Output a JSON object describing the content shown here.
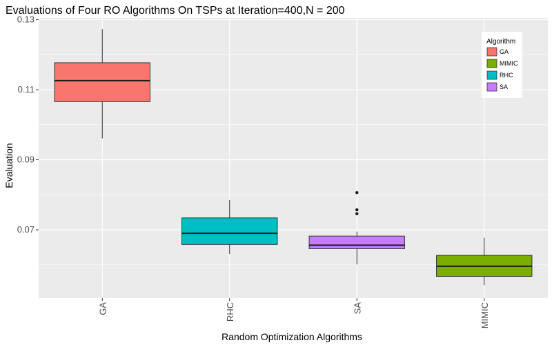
{
  "chart_data": {
    "type": "boxplot",
    "title": "Evaluations of Four RO Algorithms On TSPs at Iteration=400,N = 200",
    "xlabel": "Random Optimization Algorithms",
    "ylabel": "Evaluation",
    "ylim": [
      0.0505,
      0.1305
    ],
    "y_ticks": [
      "0.07",
      "0.09",
      "0.11",
      "0.13"
    ],
    "y_tick_values": [
      0.07,
      0.09,
      0.11,
      0.13
    ],
    "categories": [
      "GA",
      "RHC",
      "SA",
      "MIMIC"
    ],
    "boxes": [
      {
        "name": "GA",
        "min": 0.0961,
        "q1": 0.1066,
        "median": 0.1126,
        "q3": 0.1177,
        "max": 0.1273,
        "outliers": [],
        "color": "#F8766D"
      },
      {
        "name": "RHC",
        "min": 0.0631,
        "q1": 0.0658,
        "median": 0.069,
        "q3": 0.0734,
        "max": 0.0785,
        "outliers": [],
        "color": "#00BFC4"
      },
      {
        "name": "SA",
        "min": 0.0601,
        "q1": 0.0646,
        "median": 0.0656,
        "q3": 0.0682,
        "max": 0.0695,
        "outliers": [
          0.0746,
          0.0757,
          0.0806
        ],
        "color": "#C77CFF"
      },
      {
        "name": "MIMIC",
        "min": 0.0542,
        "q1": 0.0567,
        "median": 0.0596,
        "q3": 0.0627,
        "max": 0.0677,
        "outliers": [],
        "color": "#7CAE00"
      }
    ],
    "legend": {
      "title": "Algorithm",
      "placement": "top-right",
      "entries": [
        {
          "label": "GA",
          "color": "#F8766D"
        },
        {
          "label": "MIMIC",
          "color": "#7CAE00"
        },
        {
          "label": "RHC",
          "color": "#00BFC4"
        },
        {
          "label": "SA",
          "color": "#C77CFF"
        }
      ]
    },
    "grid": true,
    "panel_background": "#EBEBEB",
    "grid_color": "#FFFFFF"
  }
}
